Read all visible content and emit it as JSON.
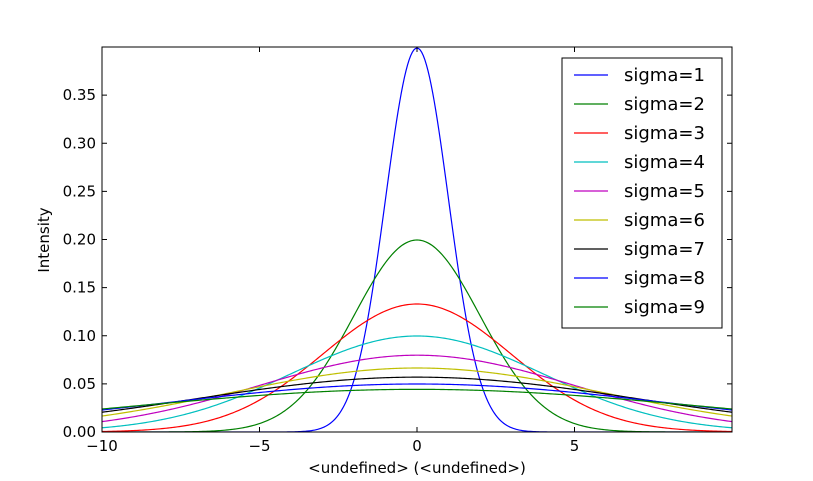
{
  "chart_data": {
    "type": "line",
    "title": "",
    "xlabel": "<undefined> (<undefined>)",
    "ylabel": "Intensity",
    "xlim": [
      -10,
      10
    ],
    "ylim": [
      0,
      0.4
    ],
    "xticks": [
      -10,
      -5,
      0,
      5
    ],
    "xtick_labels": [
      "−10",
      "−5",
      "0",
      "5"
    ],
    "yticks": [
      0,
      0.05,
      0.1,
      0.15,
      0.2,
      0.25,
      0.3,
      0.35
    ],
    "ytick_labels": [
      "0.00",
      "0.05",
      "0.10",
      "0.15",
      "0.20",
      "0.25",
      "0.30",
      "0.35"
    ],
    "grid": false,
    "legend_position": "top-right",
    "function": "Gaussian probability density, mean 0",
    "series": [
      {
        "name": "sigma=1",
        "sigma": 1,
        "color": "#0000ff",
        "peak": 0.399
      },
      {
        "name": "sigma=2",
        "sigma": 2,
        "color": "#008000",
        "peak": 0.199
      },
      {
        "name": "sigma=3",
        "sigma": 3,
        "color": "#ff0000",
        "peak": 0.133
      },
      {
        "name": "sigma=4",
        "sigma": 4,
        "color": "#00bfbf",
        "peak": 0.1
      },
      {
        "name": "sigma=5",
        "sigma": 5,
        "color": "#bf00bf",
        "peak": 0.08
      },
      {
        "name": "sigma=6",
        "sigma": 6,
        "color": "#bfbf00",
        "peak": 0.066
      },
      {
        "name": "sigma=7",
        "sigma": 7,
        "color": "#000000",
        "peak": 0.057
      },
      {
        "name": "sigma=8",
        "sigma": 8,
        "color": "#0000ff",
        "peak": 0.05
      },
      {
        "name": "sigma=9",
        "sigma": 9,
        "color": "#008000",
        "peak": 0.044
      }
    ]
  }
}
